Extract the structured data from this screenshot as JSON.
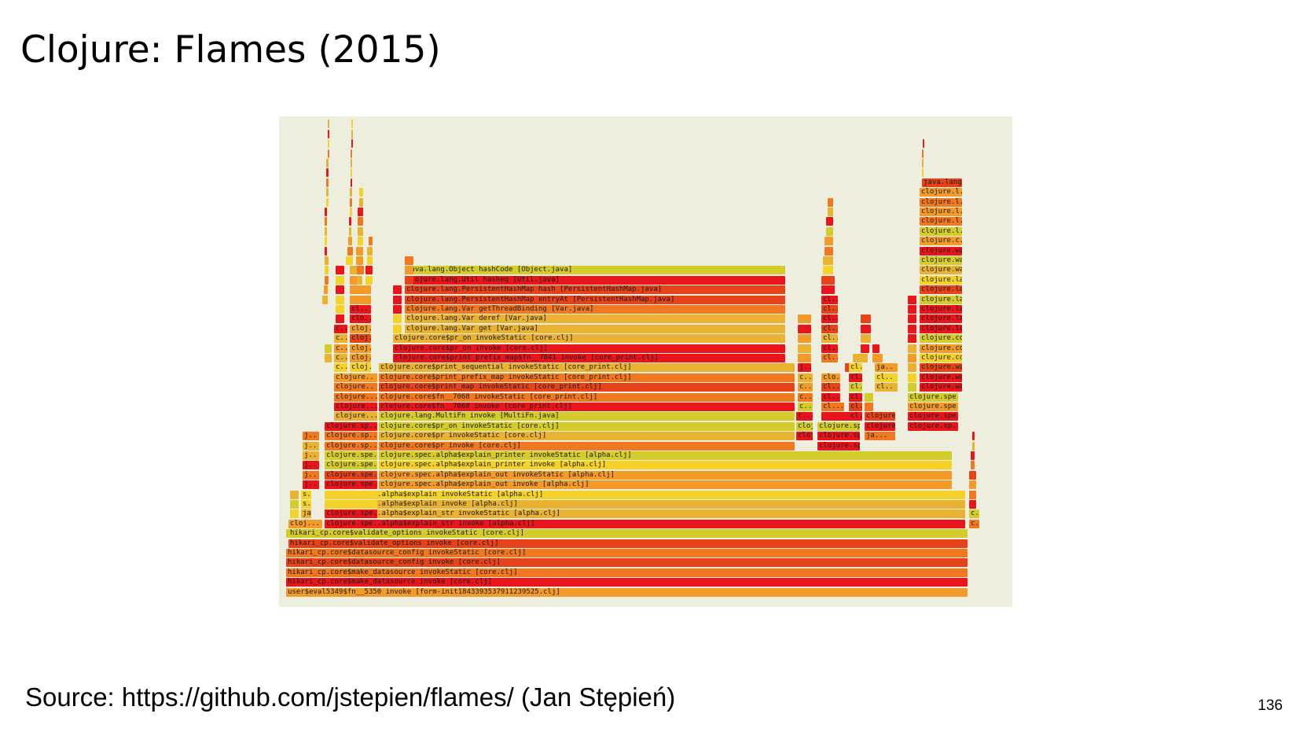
{
  "slide": {
    "title": "Clojure: Flames (2015)",
    "source": "Source: https://github.com/jstepien/flames/ (Jan Stępień)",
    "page_number": "136"
  },
  "flamegraph": {
    "frames": [
      "user$eval5349$fn__5350 invoke [form-init1843393537911239525.clj]",
      "hikari_cp.core$make_datasource invoke [core.clj]",
      "hikari_cp.core$make_datasource invokeStatic [core.clj]",
      "hikari_cp.core$datasource_config invoke [core.clj]",
      "hikari_cp.core$datasource_config invokeStatic [core.clj]",
      "hikari_cp.core$validate_options invoke [core.clj]",
      "hikari_cp.core$validate_options invokeStatic [core.clj]",
      "clojure.spec.alpha$explain_str invoke [alpha.clj]",
      "clojure.spec.alpha$explain_str invokeStatic [alpha.clj]",
      "clojure.spec.alpha$explain invoke [alpha.clj]",
      "clojure.spec.alpha$explain invokeStatic [alpha.clj]",
      "clojure.spec.alpha$explain_out invoke [alpha.clj]",
      "clojure.spec.alpha$explain_out invokeStatic [alpha.clj]",
      "clojure.spec.alpha$explain_printer invoke [alpha.clj]",
      "clojure.spec.alpha$explain_printer invokeStatic [alpha.clj]",
      "clojure.core$pr invoke [core.clj]",
      "clojure.core$pr invokeStatic [core.clj]",
      "clojure.core$pr_on invokeStatic [core.clj]",
      "clojure.lang.MultiFn invoke [MultiFn.java]",
      "clojure.core$fn__7068 invoke [core_print.clj]",
      "clojure.core$fn__7068 invokeStatic [core_print.clj]",
      "clojure.core$print_map invokeStatic [core_print.clj]",
      "clojure.core$print_prefix_map invokeStatic [core_print.clj]",
      "clojure.core$print_sequential invokeStatic [core_print.clj]",
      "clojure.core$print_prefix_map$fn__7041 invoke [core_print.clj]",
      "clojure.core$pr_on invoke [core.clj]",
      "clojure.core$pr_on invokeStatic [core.clj]",
      "clojure.lang.Var get [Var.java]",
      "clojure.lang.Var deref [Var.java]",
      "clojure.lang.Var getThreadBinding [Var.java]",
      "clojure.lang.PersistentHashMap entryAt [PersistentHashMap.java]",
      "clojure.lang.PersistentHashMap hash [PersistentHashMap.java]",
      "clojure.lang.Util hasheq [Util.java]",
      "java.lang.Object hashCode [Object.java]",
      "clojure.spe...",
      "clojure.spe..",
      "clojure.sp...",
      "clojure.sp..",
      "clojure...",
      "clojure..",
      "cloj...",
      "cloj..",
      "clo..",
      "cl..",
      "c..",
      "j..",
      "s..",
      "ja..",
      "cloj..",
      "clojure.sp",
      "clojure.spe..",
      "c...",
      "cl...",
      "clo...",
      "clojure...",
      "ja...",
      "clojure.l..",
      "clojure.la..",
      "clojure.wa..",
      "clojure.wal..",
      "clojure.co..",
      "clojure.c..",
      "java.lang..",
      "clojure.spe..",
      "cl.."
    ],
    "colors": {
      "background": "#eeeedf",
      "red": "#e8161c",
      "red_orange": "#e6431a",
      "orange": "#f07820",
      "light_orange": "#f39b2a",
      "amber": "#e9b233",
      "yellow": "#f5d22a",
      "yellow_green": "#d4cc2a",
      "olive": "#c9c02a"
    }
  }
}
